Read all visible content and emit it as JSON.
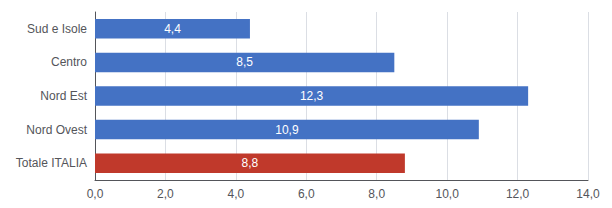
{
  "chart_data": {
    "type": "bar",
    "orientation": "horizontal",
    "categories": [
      "Totale ITALIA",
      "Nord Ovest",
      "Nord Est",
      "Centro",
      "Sud e Isole"
    ],
    "values": [
      8.8,
      10.9,
      12.3,
      8.5,
      4.4
    ],
    "value_labels": [
      "8,8",
      "10,9",
      "12,3",
      "8,5",
      "4,4"
    ],
    "data_labels": true,
    "colors": [
      "#c0392b",
      "#4472c4",
      "#4472c4",
      "#4472c4",
      "#4472c4"
    ],
    "xlim": [
      0,
      14
    ],
    "xticks": [
      {
        "value": 0.0,
        "label": "0,0"
      },
      {
        "value": 2.0,
        "label": "2,0"
      },
      {
        "value": 4.0,
        "label": "4,0"
      },
      {
        "value": 6.0,
        "label": "6,0"
      },
      {
        "value": 8.0,
        "label": "8,0"
      },
      {
        "value": 10.0,
        "label": "10,0"
      },
      {
        "value": 12.0,
        "label": "12,0"
      },
      {
        "value": 14.0,
        "label": "14,0"
      }
    ],
    "grid": true
  }
}
